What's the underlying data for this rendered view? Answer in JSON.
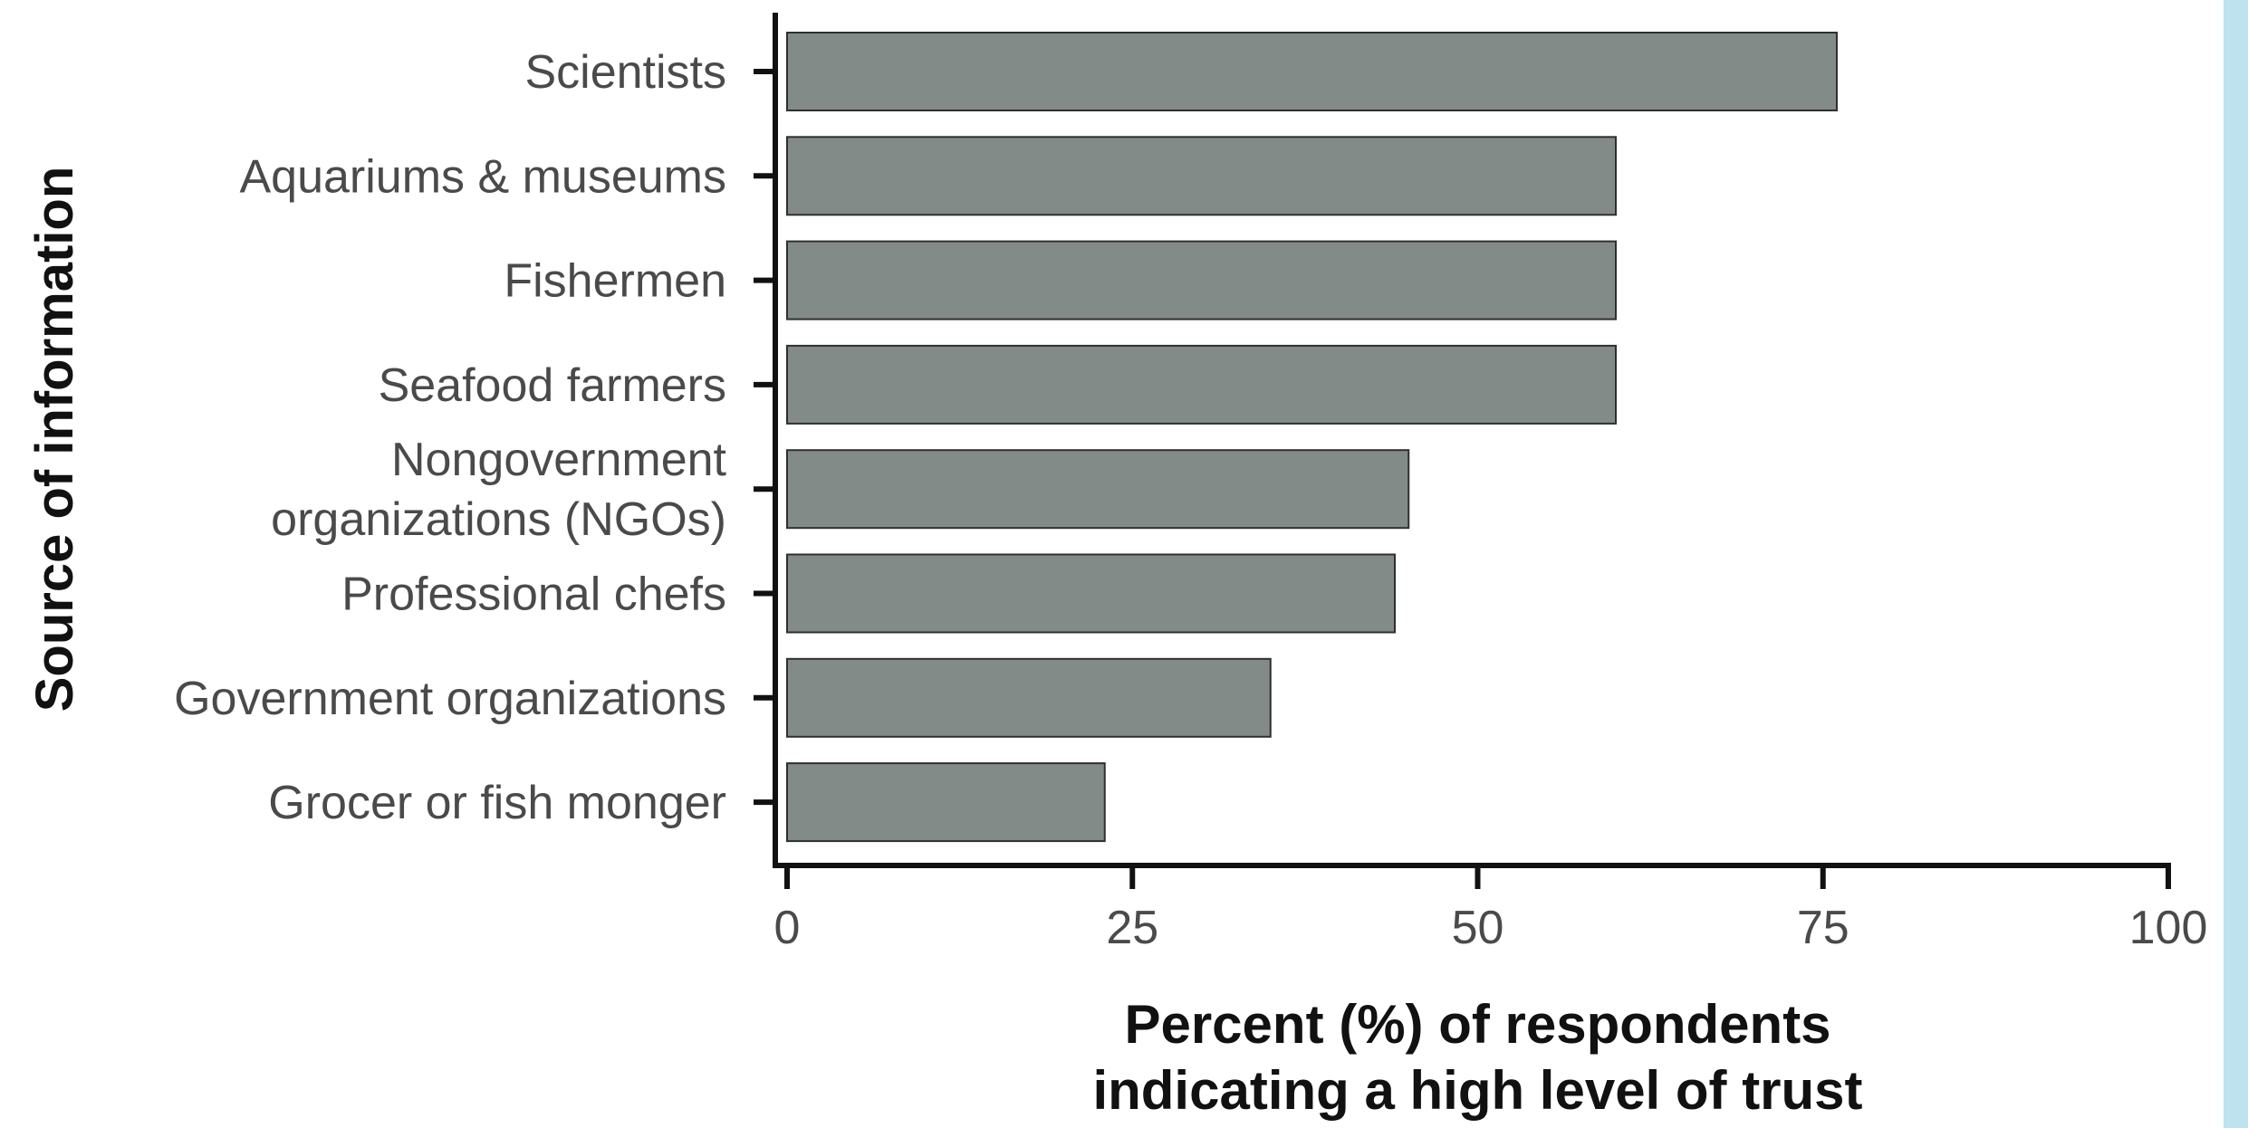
{
  "chart_data": {
    "type": "bar",
    "orientation": "horizontal",
    "categories": [
      [
        "Scientists"
      ],
      [
        "Aquariums & museums"
      ],
      [
        "Fishermen"
      ],
      [
        "Seafood farmers"
      ],
      [
        "Nongovernment",
        "organizations (NGOs)"
      ],
      [
        "Professional chefs"
      ],
      [
        "Government organizations"
      ],
      [
        "Grocer or fish monger"
      ]
    ],
    "values": [
      76,
      60,
      60,
      60,
      45,
      44,
      35,
      23
    ],
    "xlim": [
      0,
      100
    ],
    "xticks": [
      0,
      25,
      50,
      75,
      100
    ],
    "xlabel": [
      "Percent (%) of respondents",
      "indicating a high level of trust"
    ],
    "ylabel": "Source of information",
    "grid": false,
    "legend": "none",
    "colors": {
      "bar_fill": "#838b89",
      "bar_stroke": "#2f2f2f",
      "axis": "#111111",
      "tick_text": "#4a4a4a",
      "side_strip": "#bfe3ee"
    }
  }
}
